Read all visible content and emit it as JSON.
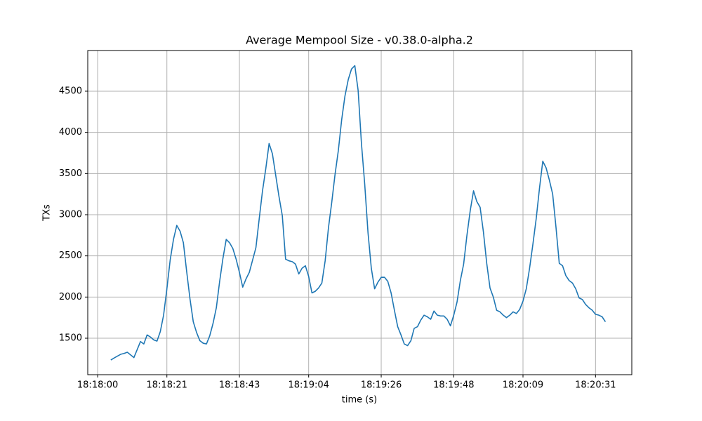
{
  "chart_data": {
    "type": "line",
    "title": "Average Mempool Size  -  v0.38.0-alpha.2",
    "x_label": "time (s)",
    "y_label": "TXs",
    "x": [
      "18:18:04",
      "18:18:05",
      "18:18:07",
      "18:18:08",
      "18:18:09",
      "18:18:11",
      "18:18:13",
      "18:18:14",
      "18:18:15",
      "18:18:16",
      "18:18:17",
      "18:18:18",
      "18:18:19",
      "18:18:20",
      "18:18:21",
      "18:18:22",
      "18:18:23",
      "18:18:24",
      "18:18:25",
      "18:18:26",
      "18:18:27",
      "18:18:28",
      "18:18:29",
      "18:18:30",
      "18:18:31",
      "18:18:32",
      "18:18:33",
      "18:18:34",
      "18:18:35",
      "18:18:36",
      "18:18:37",
      "18:18:38",
      "18:18:39",
      "18:18:40",
      "18:18:41",
      "18:18:42",
      "18:18:43",
      "18:18:44",
      "18:18:45",
      "18:18:46",
      "18:18:47",
      "18:18:48",
      "18:18:49",
      "18:18:50",
      "18:18:51",
      "18:18:52",
      "18:18:53",
      "18:18:54",
      "18:18:55",
      "18:18:56",
      "18:18:57",
      "18:18:58",
      "18:18:59",
      "18:19:00",
      "18:19:01",
      "18:19:02",
      "18:19:03",
      "18:19:04",
      "18:19:05",
      "18:19:06",
      "18:19:07",
      "18:19:08",
      "18:19:09",
      "18:19:10",
      "18:19:11",
      "18:19:12",
      "18:19:13",
      "18:19:14",
      "18:19:15",
      "18:19:16",
      "18:19:17",
      "18:19:18",
      "18:19:19",
      "18:19:20",
      "18:19:21",
      "18:19:22",
      "18:19:23",
      "18:19:24",
      "18:19:25",
      "18:19:26",
      "18:19:27",
      "18:19:28",
      "18:19:29",
      "18:19:30",
      "18:19:31",
      "18:19:32",
      "18:19:33",
      "18:19:34",
      "18:19:35",
      "18:19:36",
      "18:19:37",
      "18:19:38",
      "18:19:39",
      "18:19:40",
      "18:19:41",
      "18:19:42",
      "18:19:43",
      "18:19:44",
      "18:19:45",
      "18:19:46",
      "18:19:47",
      "18:19:48",
      "18:19:49",
      "18:19:50",
      "18:19:51",
      "18:19:52",
      "18:19:53",
      "18:19:54",
      "18:19:55",
      "18:19:56",
      "18:19:57",
      "18:19:58",
      "18:19:59",
      "18:20:00",
      "18:20:01",
      "18:20:02",
      "18:20:03",
      "18:20:04",
      "18:20:05",
      "18:20:06",
      "18:20:07",
      "18:20:08",
      "18:20:09",
      "18:20:10",
      "18:20:11",
      "18:20:12",
      "18:20:13",
      "18:20:14",
      "18:20:15",
      "18:20:16",
      "18:20:17",
      "18:20:18",
      "18:20:19",
      "18:20:20",
      "18:20:21",
      "18:20:22",
      "18:20:23",
      "18:20:24",
      "18:20:25",
      "18:20:26",
      "18:20:27",
      "18:20:28",
      "18:20:29",
      "18:20:30",
      "18:20:31",
      "18:20:32",
      "18:20:33",
      "18:20:34"
    ],
    "series": [
      {
        "name": "TXs",
        "color": "#1f77b4",
        "values": [
          1235,
          1260,
          1305,
          1315,
          1330,
          1265,
          1460,
          1430,
          1540,
          1515,
          1480,
          1465,
          1580,
          1780,
          2100,
          2450,
          2700,
          2870,
          2800,
          2660,
          2310,
          1980,
          1700,
          1570,
          1470,
          1440,
          1430,
          1530,
          1680,
          1870,
          2190,
          2470,
          2700,
          2660,
          2590,
          2460,
          2300,
          2120,
          2220,
          2300,
          2450,
          2600,
          2950,
          3290,
          3560,
          3865,
          3740,
          3480,
          3220,
          2990,
          2460,
          2440,
          2430,
          2400,
          2280,
          2350,
          2380,
          2250,
          2050,
          2070,
          2110,
          2170,
          2440,
          2840,
          3150,
          3490,
          3780,
          4150,
          4440,
          4640,
          4770,
          4810,
          4510,
          3870,
          3370,
          2780,
          2350,
          2100,
          2180,
          2240,
          2240,
          2190,
          2050,
          1840,
          1640,
          1540,
          1430,
          1410,
          1470,
          1620,
          1640,
          1720,
          1780,
          1760,
          1730,
          1830,
          1780,
          1770,
          1770,
          1730,
          1650,
          1780,
          1940,
          2200,
          2400,
          2750,
          3050,
          3290,
          3160,
          3090,
          2790,
          2410,
          2110,
          2000,
          1840,
          1820,
          1780,
          1750,
          1780,
          1820,
          1800,
          1850,
          1950,
          2100,
          2350,
          2640,
          2950,
          3320,
          3650,
          3570,
          3420,
          3250,
          2850,
          2410,
          2380,
          2260,
          2200,
          2170,
          2100,
          1990,
          1970,
          1910,
          1870,
          1840,
          1790,
          1780,
          1760,
          1700
        ]
      }
    ],
    "xlim": [
      "18:17:57",
      "18:20:42"
    ],
    "xticks": [
      "18:18:00",
      "18:18:21",
      "18:18:43",
      "18:19:04",
      "18:19:26",
      "18:19:48",
      "18:20:09",
      "18:20:31"
    ],
    "ylim": [
      1057,
      4994
    ],
    "yticks": [
      1500,
      2000,
      2500,
      3000,
      3500,
      4000,
      4500
    ],
    "grid": true
  }
}
